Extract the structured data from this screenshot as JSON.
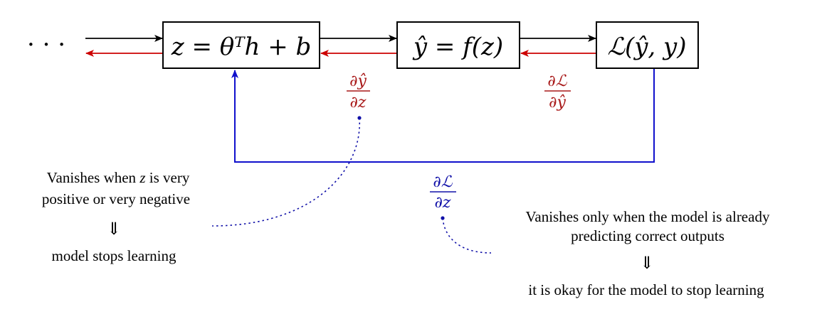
{
  "colors": {
    "forward": "#000000",
    "backward": "#cc0000",
    "direct": "#1010cc",
    "grad_red": "#a81818",
    "grad_blue": "#1010a8"
  },
  "diagram": {
    "ellipsis": "· · ·",
    "boxes": {
      "linear": "z = θᵀh + b",
      "activation": "ŷ = f(z)",
      "loss": "ℒ(ŷ, y)"
    },
    "gradients": {
      "dyhat_dz": {
        "num": "∂ŷ",
        "den": "∂z"
      },
      "dL_dyhat": {
        "num": "∂ℒ",
        "den": "∂ŷ"
      },
      "dL_dz": {
        "num": "∂ℒ",
        "den": "∂z"
      }
    },
    "notes": {
      "left": {
        "line1_a": "Vanishes when ",
        "line1_var": "z",
        "line1_b": " is very",
        "line2": "positive or very negative",
        "implies": "⇓",
        "line3": "model stops learning"
      },
      "right": {
        "line1": "Vanishes only when the model is already",
        "line2": "predicting correct outputs",
        "implies": "⇓",
        "line3": "it is okay for the model to stop learning"
      }
    }
  }
}
